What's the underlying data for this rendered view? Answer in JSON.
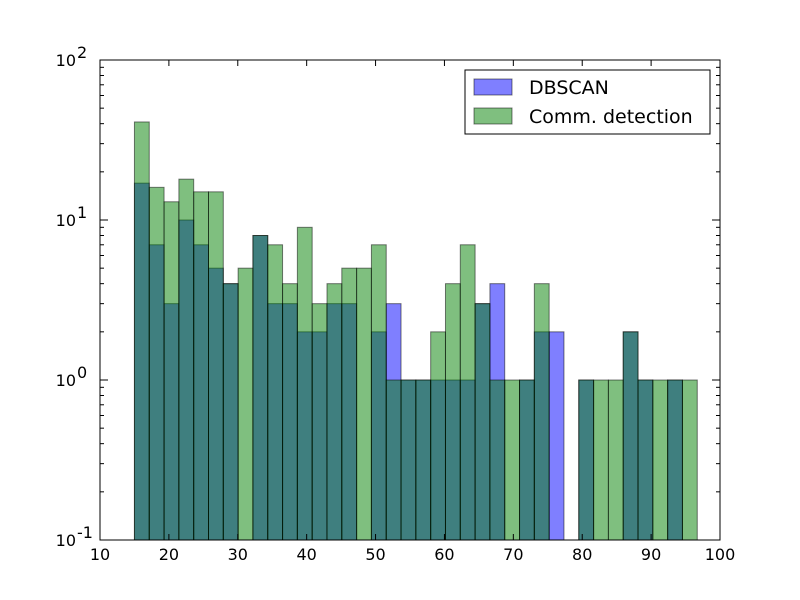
{
  "chart_data": {
    "type": "bar",
    "title": "",
    "xlabel": "",
    "ylabel": "",
    "xlim": [
      10,
      100
    ],
    "ylim": [
      0.1,
      100
    ],
    "yscale": "log",
    "grid": false,
    "legend_position": "top-right",
    "xticks": [
      "10",
      "20",
      "30",
      "40",
      "50",
      "60",
      "70",
      "80",
      "90",
      "100"
    ],
    "yticks": [
      {
        "base": "10",
        "exp": "-1"
      },
      {
        "base": "10",
        "exp": "0"
      },
      {
        "base": "10",
        "exp": "1"
      },
      {
        "base": "10",
        "exp": "2"
      }
    ],
    "bin_edges": [
      15,
      17.15,
      19.3,
      21.45,
      23.6,
      25.75,
      27.9,
      30.05,
      32.2,
      34.35,
      36.5,
      38.65,
      40.8,
      42.95,
      45.1,
      47.25,
      49.4,
      51.55,
      53.7,
      55.85,
      58,
      60.15,
      62.3,
      64.45,
      66.6,
      68.75,
      70.9,
      73.05,
      75.2,
      77.35,
      79.5,
      81.65,
      83.8,
      85.95,
      88.1,
      90.25,
      92.4,
      94.55
    ],
    "series": [
      {
        "name": "DBSCAN",
        "color": "#0000ff",
        "opacity": 0.5,
        "values": [
          17,
          7,
          3,
          10,
          7,
          5,
          4,
          0,
          8,
          3,
          3,
          2,
          2,
          3,
          3,
          0,
          2,
          3,
          1,
          1,
          1,
          1,
          1,
          3,
          4,
          0,
          1,
          2,
          2,
          0,
          1,
          0,
          0,
          2,
          1,
          0,
          1,
          0
        ]
      },
      {
        "name": "Comm. detection",
        "color": "#008000",
        "opacity": 0.5,
        "values": [
          41,
          16,
          13,
          18,
          15,
          15,
          4,
          5,
          8,
          7,
          4,
          9,
          3,
          4,
          5,
          5,
          7,
          1,
          1,
          1,
          2,
          4,
          7,
          3,
          1,
          1,
          1,
          4,
          0,
          0,
          1,
          1,
          1,
          2,
          1,
          1,
          1,
          1
        ]
      }
    ]
  }
}
